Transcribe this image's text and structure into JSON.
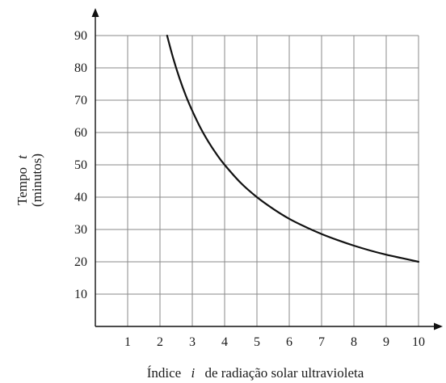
{
  "chart_data": {
    "type": "line",
    "xlabel": {
      "prefix": "Índice",
      "variable": "i",
      "suffix": "de radiação solar ultravioleta"
    },
    "ylabel": {
      "line1_prefix": "Tempo",
      "line1_variable": "t",
      "line2": "(minutos)"
    },
    "xlim": [
      0,
      10
    ],
    "ylim": [
      0,
      90
    ],
    "x_ticks": [
      "1",
      "2",
      "3",
      "4",
      "5",
      "6",
      "7",
      "8",
      "9",
      "10"
    ],
    "y_ticks": [
      "10",
      "20",
      "30",
      "40",
      "50",
      "60",
      "70",
      "80",
      "90"
    ],
    "grid": true,
    "series": [
      {
        "x": [
          2.22,
          2.4,
          2.6,
          2.8,
          3.0,
          3.25,
          3.5,
          3.75,
          4.0,
          4.5,
          5.0,
          5.5,
          6.0,
          6.5,
          7.0,
          7.5,
          8.0,
          8.5,
          9.0,
          9.5,
          10.0
        ],
        "y": [
          90.0,
          83.3,
          76.9,
          71.4,
          66.7,
          61.5,
          57.1,
          53.3,
          50.0,
          44.4,
          40.0,
          36.4,
          33.3,
          30.8,
          28.6,
          26.7,
          25.0,
          23.5,
          22.2,
          21.1,
          20.0
        ]
      }
    ],
    "line_color": "#111111",
    "grid_color": "#8a8a8a",
    "axis_color": "#111111"
  }
}
